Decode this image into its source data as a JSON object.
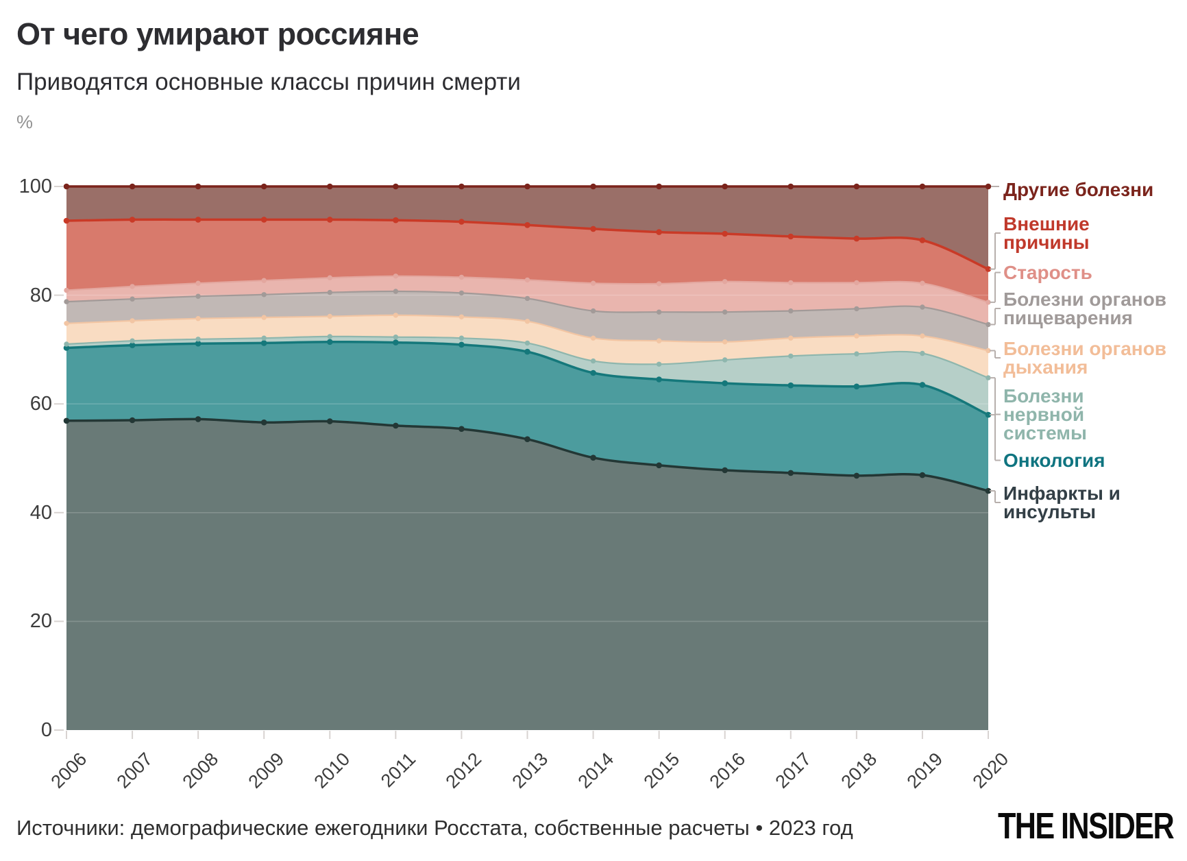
{
  "header": {
    "title": "От чего умирают россияне",
    "subtitle": "Приводятся основные классы причин смерти",
    "unit_label": "%"
  },
  "footer": {
    "source": "Источники: демографические ежегодники Росстата, собственные расчеты • 2023 год",
    "logo": "THE INSIDER"
  },
  "chart_data": {
    "type": "area",
    "stacked": true,
    "title": "От чего умирают россияне",
    "subtitle": "Приводятся основные классы причин смерти",
    "ylabel": "%",
    "ylim": [
      0,
      100
    ],
    "yticks": [
      0,
      20,
      40,
      60,
      80,
      100
    ],
    "grid": "horizontal",
    "legend_position": "right",
    "x": [
      2006,
      2007,
      2008,
      2009,
      2010,
      2011,
      2012,
      2013,
      2014,
      2015,
      2016,
      2017,
      2018,
      2019,
      2020
    ],
    "series": [
      {
        "key": "infarkty",
        "name": "Инфаркты и инсульты",
        "legend_lines": [
          "Инфаркты и",
          "инсульты"
        ],
        "fill": "#697a77",
        "line": "#233735",
        "label_color": "#333f46",
        "emphasis": true,
        "values": [
          56.9,
          57.0,
          57.2,
          56.6,
          56.8,
          56.0,
          55.4,
          53.5,
          50.1,
          48.7,
          47.8,
          47.3,
          46.8,
          46.9,
          44.0
        ]
      },
      {
        "key": "onkologia",
        "name": "Онкология",
        "legend_lines": [
          "Онкология"
        ],
        "fill": "#4c9c9e",
        "line": "#15787b",
        "label_color": "#0f7480",
        "emphasis": true,
        "values": [
          13.4,
          13.8,
          13.9,
          14.6,
          14.6,
          15.3,
          15.5,
          16.1,
          15.6,
          15.8,
          16.0,
          16.1,
          16.4,
          16.6,
          14.0
        ]
      },
      {
        "key": "nervnoy",
        "name": "Болезни нервной системы",
        "legend_lines": [
          "Болезни",
          "нервной",
          "системы"
        ],
        "fill": "#b6cfc8",
        "line": "#8eb6ad",
        "label_color": "#8fb5ab",
        "emphasis": false,
        "values": [
          0.7,
          0.8,
          0.8,
          0.9,
          1.0,
          1.0,
          1.2,
          1.6,
          2.2,
          2.8,
          4.3,
          5.4,
          6.0,
          5.8,
          6.8
        ]
      },
      {
        "key": "dykhania",
        "name": "Болезни органов дыхания",
        "legend_lines": [
          "Болезни органов",
          "дыхания"
        ],
        "fill": "#f9dcc2",
        "line": "#f2c5a3",
        "label_color": "#f2bd98",
        "emphasis": false,
        "values": [
          3.8,
          3.7,
          3.8,
          3.8,
          3.7,
          4.0,
          3.9,
          4.0,
          4.2,
          4.3,
          3.3,
          3.3,
          3.3,
          3.2,
          5.0
        ]
      },
      {
        "key": "pishchevarenia",
        "name": "Болезни органов пищеварения",
        "legend_lines": [
          "Болезни органов",
          "пищеварения"
        ],
        "fill": "#c1b8b5",
        "line": "#a29a98",
        "label_color": "#a09a99",
        "emphasis": false,
        "values": [
          4.0,
          4.0,
          4.1,
          4.2,
          4.4,
          4.4,
          4.4,
          4.2,
          5.0,
          5.3,
          5.5,
          5.0,
          5.0,
          5.3,
          4.8
        ]
      },
      {
        "key": "starost",
        "name": "Старость",
        "legend_lines": [
          "Старость"
        ],
        "fill": "#e9b5ae",
        "line": "#e3a79f",
        "label_color": "#df8f87",
        "emphasis": false,
        "values": [
          2.1,
          2.3,
          2.4,
          2.6,
          2.7,
          2.8,
          2.9,
          3.4,
          5.1,
          5.2,
          5.6,
          5.2,
          4.8,
          4.4,
          4.1
        ]
      },
      {
        "key": "vneshnie",
        "name": "Внешние причины",
        "legend_lines": [
          "Внешние",
          "причины"
        ],
        "fill": "#d87a6c",
        "line": "#c93a27",
        "label_color": "#c0392b",
        "emphasis": true,
        "values": [
          12.8,
          12.3,
          11.7,
          11.2,
          10.7,
          10.3,
          10.2,
          10.1,
          10.0,
          9.5,
          8.8,
          8.5,
          8.1,
          7.9,
          6.1
        ]
      },
      {
        "key": "drugie",
        "name": "Другие болезни",
        "legend_lines": [
          "Другие болезни"
        ],
        "fill": "#9a6f68",
        "line": "#7b241c",
        "label_color": "#7b241c",
        "emphasis": true,
        "values": [
          6.3,
          6.1,
          6.1,
          6.1,
          6.1,
          6.2,
          6.5,
          7.1,
          7.8,
          8.4,
          8.7,
          9.2,
          9.6,
          9.9,
          15.2
        ]
      }
    ]
  }
}
